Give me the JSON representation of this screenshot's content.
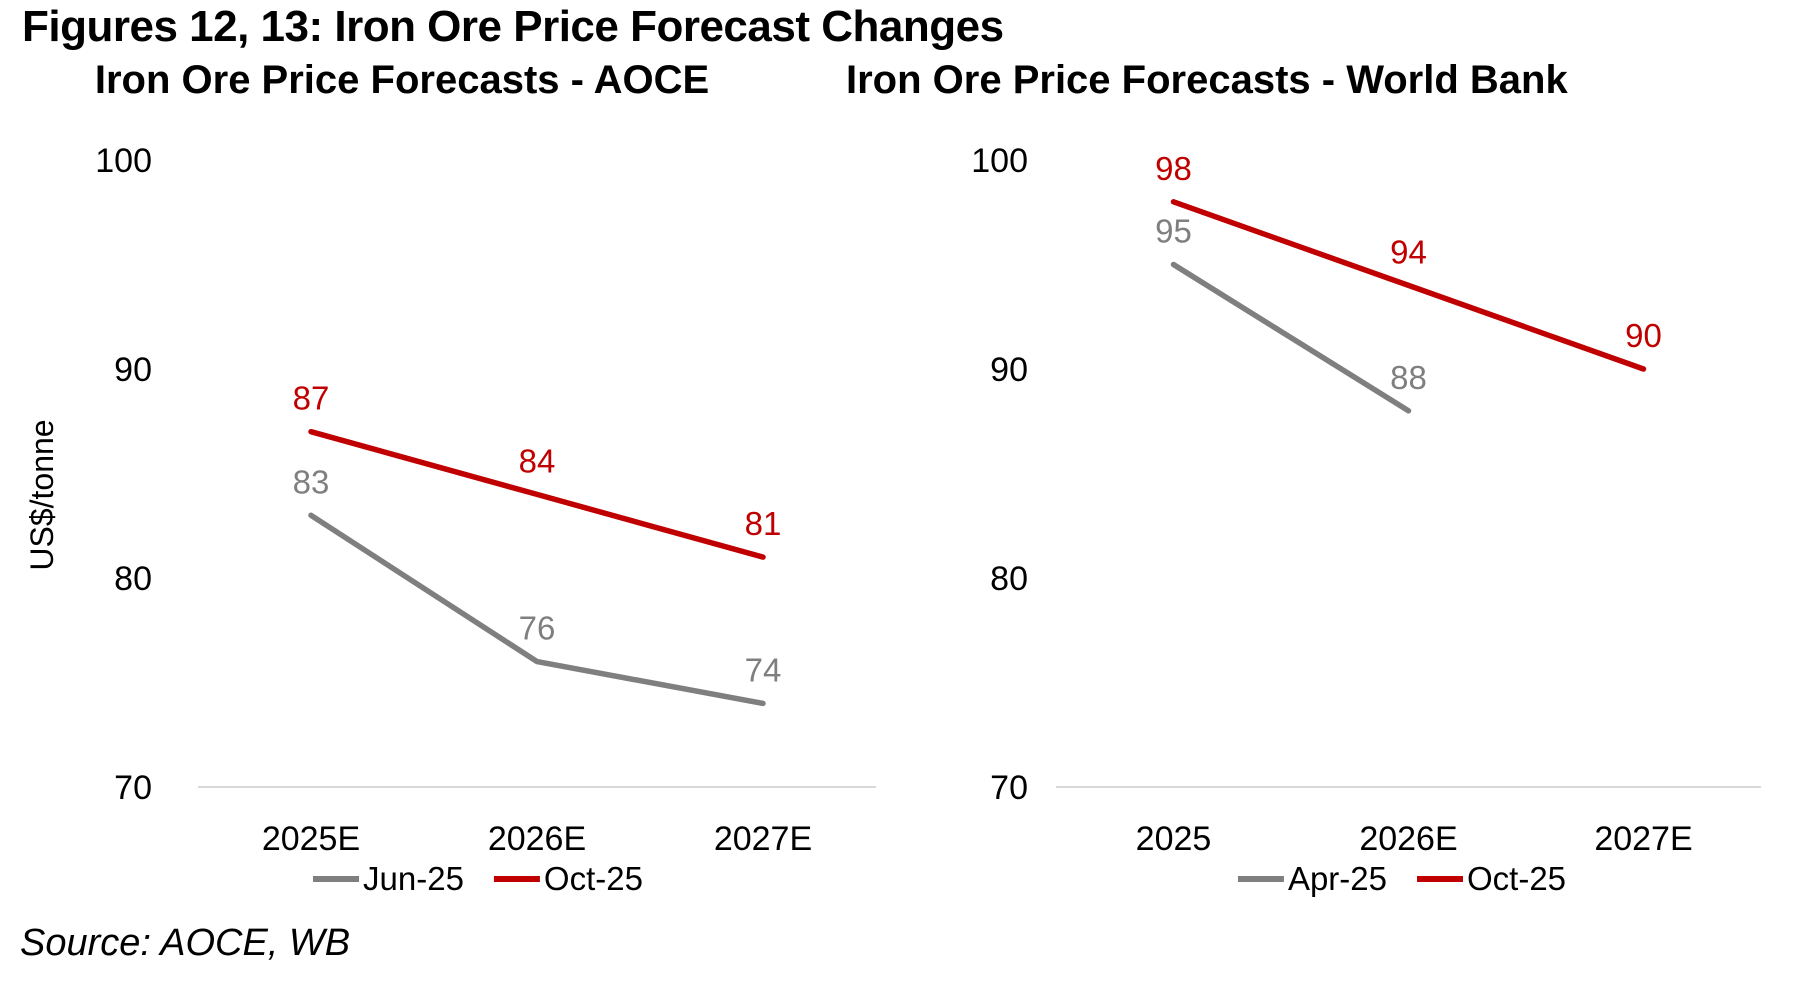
{
  "title": "Figures 12, 13: Iron Ore Price Forecast Changes",
  "source": "Source: AOCE, WB",
  "colors": {
    "red_series": "#C00000",
    "gray_series": "#7F7F7F",
    "axis_line": "#D9D9D9",
    "text": "#000000"
  },
  "chart_data": [
    {
      "type": "line",
      "title": "Iron Ore Price Forecasts - AOCE",
      "ylabel": "US$/tonne",
      "xlabel": "",
      "categories": [
        "2025E",
        "2026E",
        "2027E"
      ],
      "series": [
        {
          "name": "Jun-25",
          "color": "#7F7F7F",
          "values": [
            83,
            76,
            74
          ]
        },
        {
          "name": "Oct-25",
          "color": "#C00000",
          "values": [
            87,
            84,
            81
          ]
        }
      ],
      "ylim": [
        70,
        100
      ],
      "yticks": [
        70,
        80,
        90,
        100
      ],
      "grid": false,
      "data_labels": true,
      "legend_position": "bottom"
    },
    {
      "type": "line",
      "title": "Iron Ore Price Forecasts - World Bank",
      "ylabel": "",
      "xlabel": "",
      "categories": [
        "2025",
        "2026E",
        "2027E"
      ],
      "series": [
        {
          "name": "Apr-25",
          "color": "#7F7F7F",
          "values": [
            95,
            88,
            null
          ]
        },
        {
          "name": "Oct-25",
          "color": "#C00000",
          "values": [
            98,
            94,
            90
          ]
        }
      ],
      "ylim": [
        70,
        100
      ],
      "yticks": [
        70,
        80,
        90,
        100
      ],
      "grid": false,
      "data_labels": true,
      "legend_position": "bottom"
    }
  ]
}
